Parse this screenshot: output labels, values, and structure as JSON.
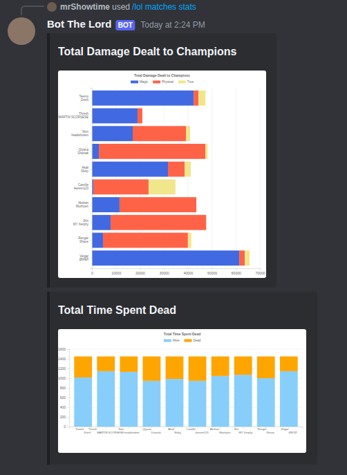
{
  "message": {
    "reply": {
      "user": "mrShowtime",
      "text": "used",
      "command": "/lol matches stats"
    },
    "author": "Bot The Lord",
    "badge": "BOT",
    "timestamp": "Today at 2:24 PM",
    "embeds": [
      {
        "title": "Total Damage Dealt to Champions"
      },
      {
        "title": "Total Time Spent Dead"
      }
    ]
  },
  "chart_data": [
    {
      "type": "bar",
      "title": "Total Damage Dealt to Champions",
      "orientation": "horizontal",
      "stacked": true,
      "grid": true,
      "legend": "top",
      "categories": [
        "Teemo\nZverlt",
        "Thresh\nMARTIN SCORSESE",
        "Sion\nheadshotem",
        "Qiyana\nDraxtak",
        "Akali\nSloky",
        "Camille\nikerem123",
        "Akshan\nMozhyen",
        "Jhin\nMY Xerphy",
        "Rengar\nShaue",
        "Veigar\nØłX€Й"
      ],
      "series": [
        {
          "name": "Magic",
          "color": "#4169e1",
          "values": [
            42400,
            19000,
            17000,
            2900,
            31700,
            600,
            11500,
            7800,
            4600,
            61400
          ]
        },
        {
          "name": "Physical",
          "color": "#ff6347",
          "values": [
            2000,
            2000,
            22200,
            44400,
            6900,
            23000,
            32000,
            39800,
            35400,
            2300
          ]
        },
        {
          "name": "True",
          "color": "#f0e68c",
          "values": [
            2900,
            0,
            1700,
            900,
            2600,
            11200,
            0,
            0,
            1400,
            2000
          ]
        }
      ],
      "xlim": [
        0,
        70000
      ],
      "xticks": [
        0,
        10000,
        20000,
        30000,
        40000,
        50000,
        60000,
        70000
      ]
    },
    {
      "type": "bar",
      "title": "Total Time Spent Dead",
      "stacked": true,
      "grid": true,
      "legend": "top",
      "categories": [
        "Teemo\nZverlt",
        "Thresh\nMARTIN SCORSESE",
        "Sion\nheadshotem",
        "Qiyana\nDraxtak",
        "Akali\nSloky",
        "Camille\nikerem123",
        "Akshan\nMozhyen",
        "Jhin\nMY Xerphy",
        "Rengar\nShaue",
        "Veigar\nØłX€Й"
      ],
      "series": [
        {
          "name": "Alive",
          "color": "#87cefa",
          "values": [
            1015,
            1145,
            1130,
            945,
            985,
            945,
            1045,
            1070,
            1000,
            1145
          ]
        },
        {
          "name": "Dead",
          "color": "#ffa500",
          "values": [
            435,
            305,
            320,
            505,
            465,
            505,
            405,
            380,
            450,
            305
          ]
        }
      ],
      "ylim": [
        0,
        1600
      ],
      "yticks": [
        0,
        200,
        400,
        600,
        800,
        1000,
        1200,
        1400,
        1600
      ]
    }
  ]
}
